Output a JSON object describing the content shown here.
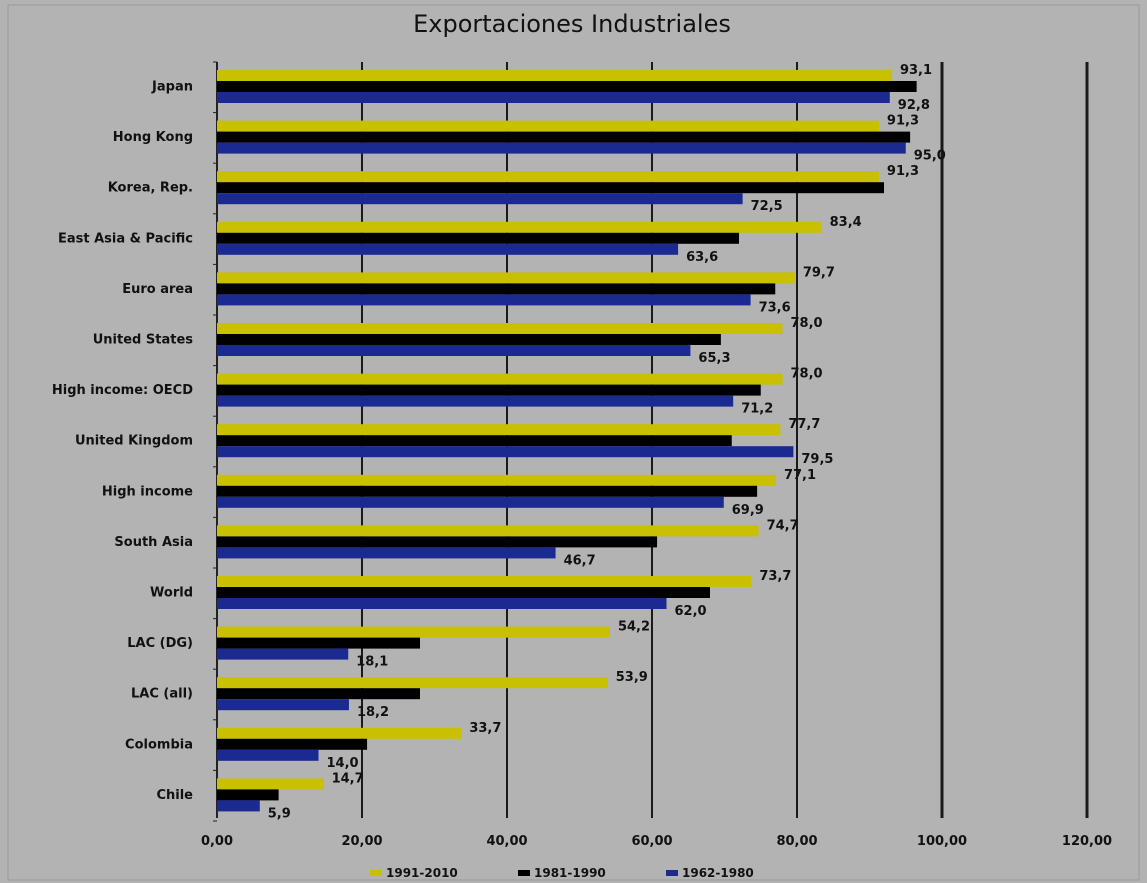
{
  "chart_data": {
    "type": "bar",
    "orientation": "horizontal",
    "title": "Exportaciones Industriales",
    "xlim": [
      0,
      120
    ],
    "xticks": [
      "0,00",
      "20,00",
      "40,00",
      "60,00",
      "80,00",
      "100,00",
      "120,00"
    ],
    "grid": "vertical",
    "legend_position": "bottom",
    "categories": [
      "Japan",
      "Hong Kong",
      "Korea, Rep.",
      "East Asia & Pacific",
      "Euro area",
      "United States",
      "High income: OECD",
      "United Kingdom",
      "High income",
      "South Asia",
      "World",
      "LAC (DG)",
      "LAC (all)",
      "Colombia",
      "Chile"
    ],
    "series": [
      {
        "name": "1991-2010",
        "color": "#c8c000",
        "values": [
          93.1,
          91.3,
          91.3,
          83.4,
          79.7,
          78.0,
          78.0,
          77.7,
          77.1,
          74.7,
          73.7,
          54.2,
          53.9,
          33.7,
          14.7
        ],
        "labels": [
          "93,1",
          "91,3",
          "91,3",
          "83,4",
          "79,7",
          "78,0",
          "78,0",
          "77,7",
          "77,1",
          "74,7",
          "73,7",
          "54,2",
          "53,9",
          "33,7",
          "14,7"
        ]
      },
      {
        "name": "1981-1990",
        "color": "#000000",
        "values": [
          96.5,
          95.6,
          92.0,
          72.0,
          77.0,
          69.5,
          75.0,
          71.0,
          74.5,
          60.7,
          68.0,
          28.0,
          28.0,
          20.7,
          8.5
        ],
        "labels": []
      },
      {
        "name": "1962-1980",
        "color": "#1a2a90",
        "values": [
          92.8,
          95.0,
          72.5,
          63.6,
          73.6,
          65.3,
          71.2,
          79.5,
          69.9,
          46.7,
          62.0,
          18.1,
          18.2,
          14.0,
          5.9
        ],
        "labels": [
          "92,8",
          "95,0",
          "72,5",
          "63,6",
          "73,6",
          "65,3",
          "71,2",
          "79,5",
          "69,9",
          "46,7",
          "62,0",
          "18,1",
          "18,2",
          "14,0",
          "5,9"
        ]
      }
    ]
  }
}
